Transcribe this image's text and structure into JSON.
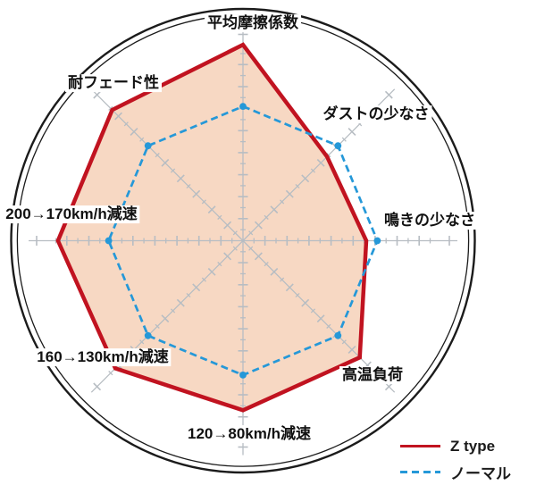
{
  "chart_data": {
    "type": "radar",
    "title": "",
    "axes": [
      "平均摩擦係数",
      "ダストの少なさ",
      "鳴きの少なさ",
      "高温負荷",
      "120→80km/h減速",
      "160→130km/h減速",
      "200→170km/h減速",
      "耐フェード性"
    ],
    "scale": {
      "min": 0,
      "max": 10,
      "major_tick": 1,
      "minor_tick": 0.5,
      "rings": false
    },
    "series": [
      {
        "name": "Z type",
        "style": "solid",
        "color": "#c11320",
        "fill": "#f7d8c3",
        "values": [
          8.9,
          5.4,
          5.6,
          7.5,
          7.7,
          8.2,
          8.4,
          8.4
        ]
      },
      {
        "name": "ノーマル",
        "style": "dashed",
        "color": "#2598d8",
        "fill": null,
        "values": [
          6.1,
          6.1,
          6.1,
          6.1,
          6.1,
          6.1,
          6.1,
          6.1
        ]
      }
    ],
    "legend_position": "bottom-right",
    "outer_double_ring": true
  },
  "colors": {
    "axis": "#b7bdc3",
    "ring": "#1b1b1b",
    "label_text": "#111111",
    "background": "#ffffff"
  }
}
